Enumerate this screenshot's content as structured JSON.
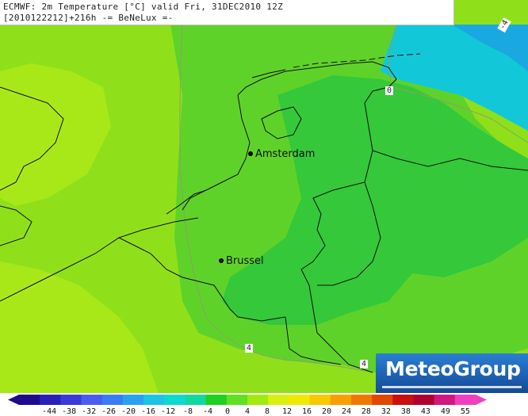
{
  "header": {
    "line1": "ECMWF: 2m Temperature [°C] valid Fri, 31DEC2010 12Z",
    "line2": "[2010122212]+216h -= BeNeLux =-"
  },
  "cities": [
    {
      "name": "Amsterdam"
    },
    {
      "name": "Brussel"
    }
  ],
  "isolines": [
    {
      "label": "0"
    },
    {
      "label": "4"
    },
    {
      "label": "4"
    },
    {
      "label": "-4"
    }
  ],
  "logo": {
    "text": "MeteoGroup"
  },
  "colorscale": {
    "ticks": [
      "-44",
      "-38",
      "-32",
      "-26",
      "-20",
      "-16",
      "-12",
      "-8",
      "-4",
      "0",
      "4",
      "8",
      "12",
      "16",
      "20",
      "24",
      "28",
      "32",
      "38",
      "43",
      "49",
      "55"
    ],
    "colors": [
      "#1e0a8c",
      "#2a20b8",
      "#3a3ad8",
      "#4a5cf0",
      "#3a7cf2",
      "#2aa0f0",
      "#1ec4e8",
      "#10d8d0",
      "#10d8a0",
      "#20d020",
      "#60e020",
      "#a0ea10",
      "#d8f010",
      "#f0e800",
      "#f8c800",
      "#f8a000",
      "#f07800",
      "#e04800",
      "#c81010",
      "#b00030",
      "#d01880",
      "#f040c0"
    ]
  }
}
